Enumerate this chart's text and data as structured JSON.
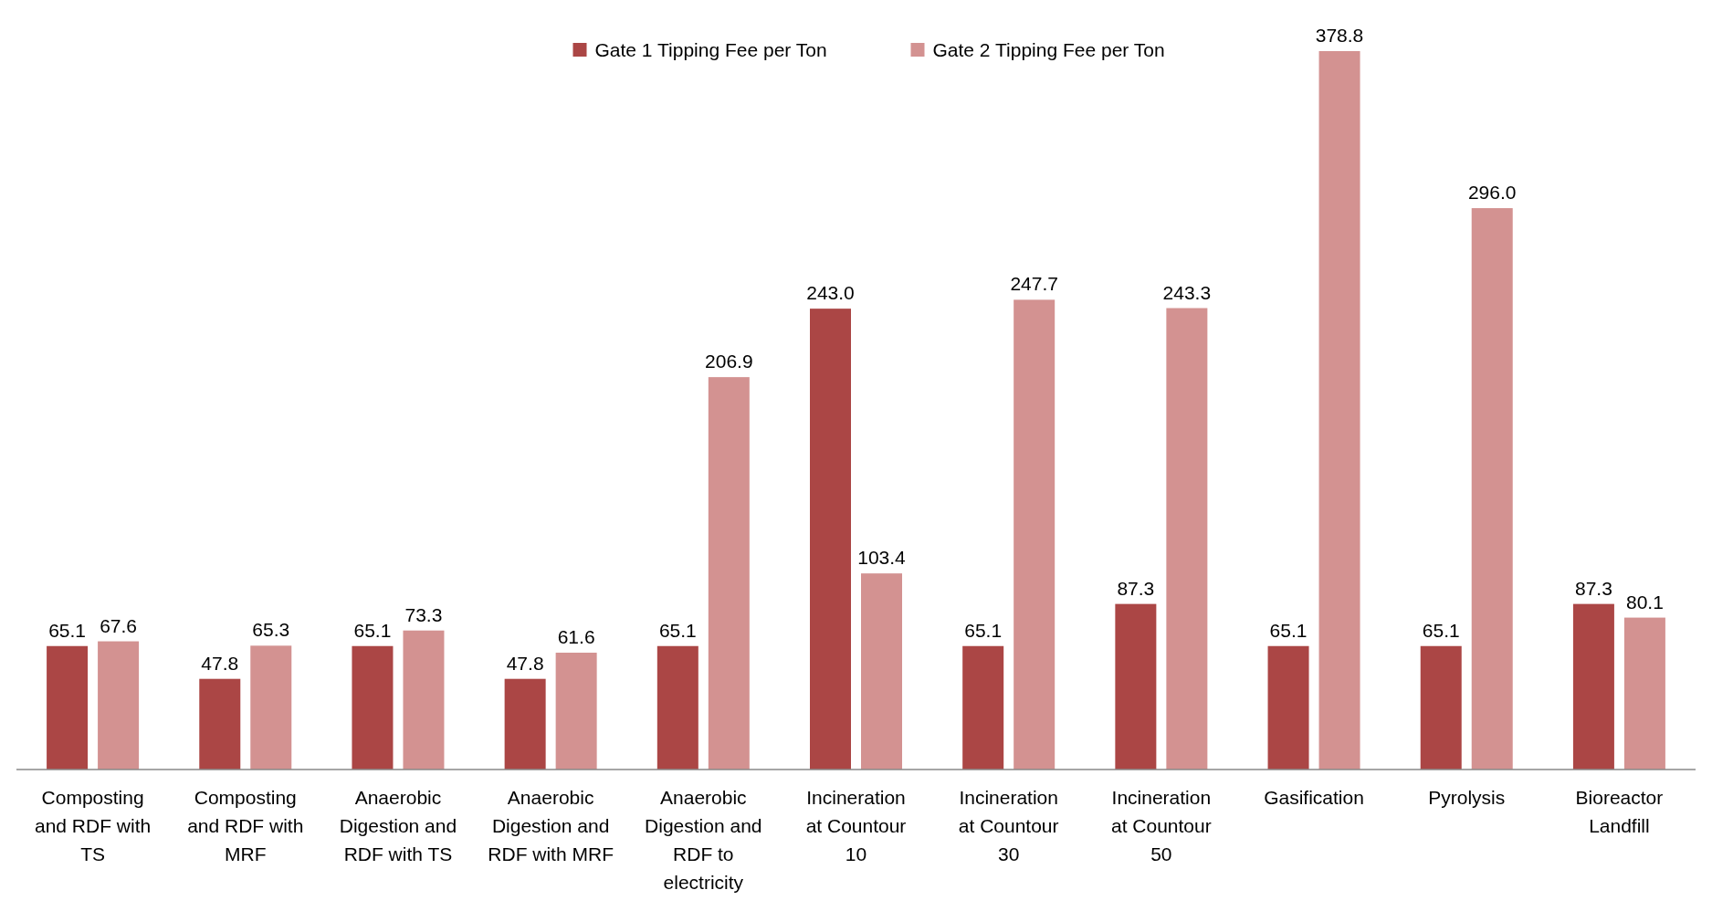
{
  "chart_data": {
    "type": "bar",
    "categories": [
      "Composting and RDF with TS",
      "Composting and RDF with MRF",
      "Anaerobic Digestion and RDF with TS",
      "Anaerobic Digestion and RDF with MRF",
      "Anaerobic Digestion and RDF to electricity",
      "Incineration at Countour 10",
      "Incineration at Countour 30",
      "Incineration at Countour 50",
      "Gasification",
      "Pyrolysis",
      "Bioreactor Landfill"
    ],
    "series": [
      {
        "name": "Gate 1 Tipping Fee per Ton",
        "color": "#ab4645",
        "values": [
          65.1,
          47.8,
          65.1,
          47.8,
          65.1,
          243,
          65.1,
          87.3,
          65.1,
          65.1,
          87.3
        ],
        "value_labels": [
          "65.1",
          "47.8",
          "65.1",
          "47.8",
          "65.1",
          "243.0",
          "65.1",
          "87.3",
          "65.1",
          "65.1",
          "87.3"
        ]
      },
      {
        "name": "Gate 2 Tipping Fee per Ton",
        "color": "#d39291",
        "values": [
          67.6,
          65.3,
          73.3,
          61.6,
          206.9,
          103.4,
          247.7,
          243.3,
          378.8,
          296,
          80.1
        ],
        "value_labels": [
          "67.6",
          "65.3",
          "73.3",
          "61.6",
          "206.9",
          "103.4",
          "247.7",
          "243.3",
          "378.8",
          "296.0",
          "80.1"
        ]
      }
    ],
    "legend": "top"
  }
}
